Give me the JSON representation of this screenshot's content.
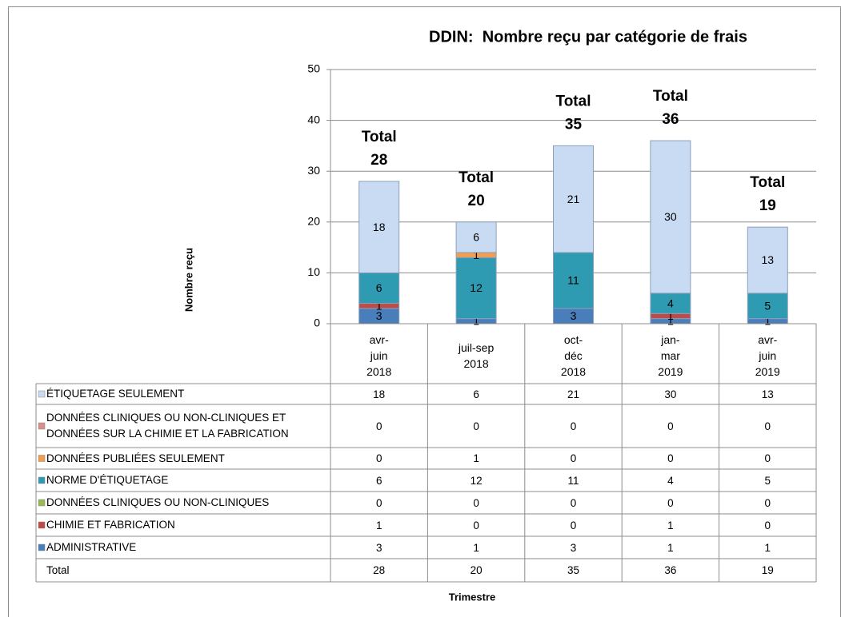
{
  "chart_data": {
    "type": "bar",
    "stacked": true,
    "title": "DDIN:  Nombre reçu par catégorie de frais",
    "y_label": "Nombre reçu",
    "x_label": "Trimestre",
    "categories": [
      "avr-juin 2018",
      "juil-sep 2018",
      "oct-déc 2018",
      "jan-mar 2019",
      "avr-juin 2019"
    ],
    "series": [
      {
        "name": "ADMINISTRATIVE",
        "color": "#4a7ebb",
        "values": [
          3,
          1,
          3,
          1,
          1
        ]
      },
      {
        "name": "CHIMIE ET FABRICATION",
        "color": "#be4b48",
        "values": [
          1,
          0,
          0,
          1,
          0
        ]
      },
      {
        "name": "DONNÉES CLINIQUES OU NON-CLINIQUES",
        "color": "#98b954",
        "values": [
          0,
          0,
          0,
          0,
          0
        ]
      },
      {
        "name": "NORME D'ÉTIQUETAGE",
        "color": "#2f9bb3",
        "values": [
          6,
          12,
          11,
          4,
          5
        ]
      },
      {
        "name": "DONNÉES PUBLIÉES SEULEMENT",
        "color": "#f59d4f",
        "values": [
          0,
          1,
          0,
          0,
          0
        ]
      },
      {
        "name": "DONNÉES CLINIQUES OU NON-CLINIQUES ET DONNÉES SUR LA CHIMIE ET LA FABRICATION",
        "color": "#d88f8d",
        "values": [
          0,
          0,
          0,
          0,
          0
        ]
      },
      {
        "name": "ÉTIQUETAGE SEULEMENT",
        "color": "#c9dbf3",
        "values": [
          18,
          6,
          21,
          30,
          13
        ]
      }
    ],
    "total_label": "Total",
    "totals": [
      28,
      20,
      35,
      36,
      19
    ],
    "ylim": [
      0,
      50
    ],
    "yticks": [
      0,
      10,
      20,
      30,
      40,
      50
    ],
    "grid": true
  }
}
